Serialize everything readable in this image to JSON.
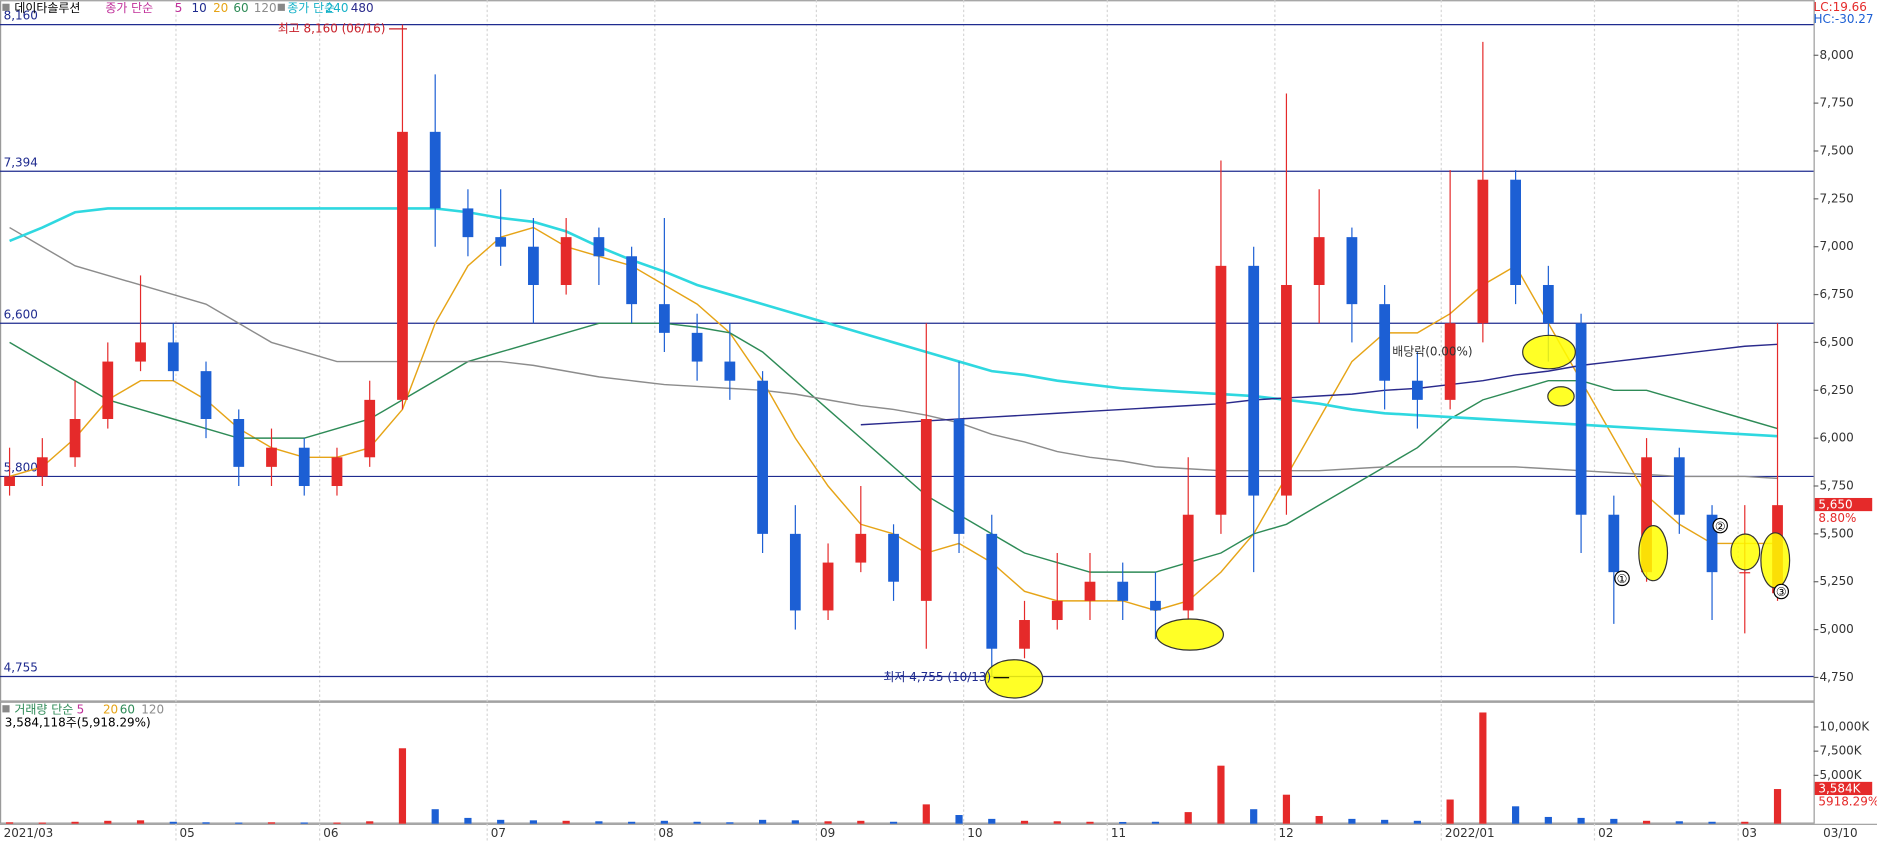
{
  "chart_data": [
    {
      "type": "candlestick",
      "title": "데이타솔루션",
      "legend_prefix": "종가 단순",
      "legend_extra": [
        {
          "name": "5",
          "color": "#c0309a"
        },
        {
          "name": "10",
          "color": "#1f2b8f"
        }
      ],
      "top_right": [
        "LC:19.66",
        "HC:-30.27"
      ],
      "ylim": [
        4630,
        8288
      ],
      "yticks": [
        {
          "value": 4750,
          "label": "4,750"
        },
        {
          "value": 5000,
          "label": "5,000"
        },
        {
          "value": 5250,
          "label": "5,250"
        },
        {
          "value": 5500,
          "label": "5,500"
        },
        {
          "value": 5750,
          "label": "5,750"
        },
        {
          "value": 6000,
          "label": "6,000"
        },
        {
          "value": 6250,
          "label": "6,250"
        },
        {
          "value": 6500,
          "label": "6,500"
        },
        {
          "value": 6750,
          "label": "6,750"
        },
        {
          "value": 7000,
          "label": "7,000"
        },
        {
          "value": 7250,
          "label": "7,250"
        },
        {
          "value": 7500,
          "label": "7,500"
        },
        {
          "value": 7750,
          "label": "7,750"
        },
        {
          "value": 8000,
          "label": "8,000"
        }
      ],
      "levels": [
        {
          "value": 8160,
          "label": "8,160"
        },
        {
          "value": 7394,
          "label": "7,394"
        },
        {
          "value": 6600,
          "label": "6,600"
        },
        {
          "value": 5800,
          "label": "5,800"
        },
        {
          "value": 4755,
          "label": "4,755"
        }
      ],
      "up_color": "#e52a2a",
      "down_color": "#1c5fd4",
      "candles": [
        [
          5750,
          5950,
          5700,
          5800
        ],
        [
          5800,
          6000,
          5750,
          5900
        ],
        [
          5900,
          6300,
          5850,
          6100
        ],
        [
          6100,
          6500,
          6050,
          6400
        ],
        [
          6400,
          6850,
          6350,
          6500
        ],
        [
          6500,
          6600,
          6300,
          6350
        ],
        [
          6350,
          6400,
          6000,
          6100
        ],
        [
          6100,
          6150,
          5750,
          5850
        ],
        [
          5850,
          6050,
          5750,
          5950
        ],
        [
          5950,
          6000,
          5700,
          5750
        ],
        [
          5750,
          5950,
          5700,
          5900
        ],
        [
          5900,
          6300,
          5850,
          6200
        ],
        [
          6200,
          8160,
          6150,
          7600
        ],
        [
          7600,
          7900,
          7000,
          7200
        ],
        [
          7200,
          7300,
          6950,
          7050
        ],
        [
          7050,
          7300,
          6900,
          7000
        ],
        [
          7000,
          7150,
          6600,
          6800
        ],
        [
          6800,
          7150,
          6750,
          7050
        ],
        [
          7050,
          7100,
          6800,
          6950
        ],
        [
          6950,
          7000,
          6600,
          6700
        ],
        [
          6700,
          7150,
          6450,
          6550
        ],
        [
          6550,
          6650,
          6300,
          6400
        ],
        [
          6400,
          6600,
          6200,
          6300
        ],
        [
          6300,
          6350,
          5400,
          5500
        ],
        [
          5500,
          5650,
          5000,
          5100
        ],
        [
          5100,
          5450,
          5050,
          5350
        ],
        [
          5350,
          5750,
          5300,
          5500
        ],
        [
          5500,
          5550,
          5150,
          5250
        ],
        [
          5150,
          6600,
          4900,
          6100
        ],
        [
          6100,
          6400,
          5400,
          5500
        ],
        [
          5500,
          5600,
          4755,
          4900
        ],
        [
          4900,
          5150,
          4850,
          5050
        ],
        [
          5050,
          5400,
          5000,
          5150
        ],
        [
          5150,
          5400,
          5050,
          5250
        ],
        [
          5250,
          5350,
          5050,
          5150
        ],
        [
          5150,
          5300,
          4950,
          5100
        ],
        [
          5100,
          5900,
          5050,
          5600
        ],
        [
          5600,
          7450,
          5500,
          6900
        ],
        [
          6900,
          7000,
          5300,
          5700
        ],
        [
          5700,
          7800,
          5600,
          6800
        ],
        [
          6800,
          7300,
          6600,
          7050
        ],
        [
          7050,
          7100,
          6500,
          6700
        ],
        [
          6700,
          6800,
          6150,
          6300
        ],
        [
          6300,
          6450,
          6050,
          6200
        ],
        [
          6200,
          7400,
          6150,
          6600
        ],
        [
          6600,
          8070,
          6500,
          7350
        ],
        [
          7350,
          7400,
          6700,
          6800
        ],
        [
          6800,
          6900,
          6400,
          6600
        ],
        [
          6600,
          6650,
          5400,
          5600
        ],
        [
          5600,
          5700,
          5030,
          5300
        ],
        [
          5300,
          6000,
          5250,
          5900
        ],
        [
          5900,
          5950,
          5500,
          5600
        ],
        [
          5600,
          5650,
          5050,
          5300
        ],
        [
          5300,
          5650,
          4980,
          5300
        ],
        [
          5190,
          6600,
          5150,
          5650
        ]
      ],
      "series": [
        {
          "name": "20",
          "color": "#e6a417",
          "values": [
            5800,
            5850,
            6000,
            6200,
            6300,
            6300,
            6200,
            6050,
            5950,
            5900,
            5900,
            5950,
            6150,
            6600,
            6900,
            7050,
            7100,
            7000,
            6950,
            6900,
            6800,
            6700,
            6550,
            6300,
            6000,
            5750,
            5550,
            5500,
            5400,
            5450,
            5350,
            5200,
            5150,
            5150,
            5150,
            5100,
            5150,
            5300,
            5500,
            5800,
            6100,
            6400,
            6550,
            6550,
            6650,
            6800,
            6900,
            6600,
            6300,
            6000,
            5700,
            5550,
            5450,
            5450,
            5450
          ]
        },
        {
          "name": "60",
          "color": "#2e8b57",
          "values": [
            6500,
            6400,
            6300,
            6200,
            6150,
            6100,
            6050,
            6000,
            6000,
            6000,
            6050,
            6100,
            6200,
            6300,
            6400,
            6450,
            6500,
            6550,
            6600,
            6600,
            6600,
            6580,
            6550,
            6450,
            6300,
            6150,
            6000,
            5850,
            5700,
            5600,
            5500,
            5400,
            5350,
            5300,
            5300,
            5300,
            5350,
            5400,
            5500,
            5550,
            5650,
            5750,
            5850,
            5950,
            6100,
            6200,
            6250,
            6300,
            6300,
            6250,
            6250,
            6200,
            6150,
            6100,
            6050
          ]
        },
        {
          "name": "120",
          "color": "#8c8c8c",
          "values": [
            7100,
            7000,
            6900,
            6850,
            6800,
            6750,
            6700,
            6600,
            6500,
            6450,
            6400,
            6400,
            6400,
            6400,
            6400,
            6400,
            6380,
            6350,
            6320,
            6300,
            6280,
            6270,
            6260,
            6250,
            6230,
            6200,
            6170,
            6150,
            6120,
            6080,
            6020,
            5980,
            5930,
            5900,
            5880,
            5850,
            5840,
            5830,
            5830,
            5830,
            5830,
            5840,
            5850,
            5850,
            5850,
            5850,
            5850,
            5840,
            5830,
            5820,
            5810,
            5800,
            5800,
            5800,
            5790
          ]
        },
        {
          "name": "240",
          "color": "#2fd8e0",
          "values": [
            7030,
            7100,
            7180,
            7200,
            7200,
            7200,
            7200,
            7200,
            7200,
            7200,
            7200,
            7200,
            7200,
            7200,
            7180,
            7150,
            7130,
            7080,
            7000,
            6930,
            6870,
            6800,
            6750,
            6700,
            6650,
            6600,
            6550,
            6500,
            6450,
            6400,
            6350,
            6330,
            6300,
            6280,
            6260,
            6250,
            6240,
            6230,
            6220,
            6200,
            6180,
            6150,
            6130,
            6120,
            6110,
            6100,
            6090,
            6080,
            6070,
            6060,
            6050,
            6040,
            6030,
            6020,
            6010
          ]
        },
        {
          "name": "480",
          "color": "#2a2a8c",
          "values": [
            null,
            null,
            null,
            null,
            null,
            null,
            null,
            null,
            null,
            null,
            null,
            null,
            null,
            null,
            null,
            null,
            null,
            null,
            null,
            null,
            null,
            null,
            null,
            null,
            null,
            null,
            6070,
            6080,
            6090,
            6100,
            6110,
            6120,
            6130,
            6140,
            6150,
            6160,
            6170,
            6180,
            6200,
            6210,
            6220,
            6230,
            6250,
            6260,
            6280,
            6300,
            6330,
            6350,
            6380,
            6400,
            6420,
            6440,
            6460,
            6480,
            6490
          ]
        }
      ],
      "annotations": [
        "최고 8,160 (06/16)",
        "최저 4,755 (10/13)",
        "배당락(0.00%)"
      ],
      "markers": [
        "①",
        "②",
        "③"
      ],
      "current": {
        "value": 5650,
        "label": "5,650",
        "change": "8.80%"
      }
    },
    {
      "type": "bar",
      "legend": [
        "거래량 단순",
        "5",
        "20",
        "60",
        "120"
      ],
      "summary": "3,584,118주(5,918.29%)",
      "ylim": [
        0,
        12500
      ],
      "yticks": [
        {
          "value": 5000,
          "label": "5,000K"
        },
        {
          "value": 7500,
          "label": "7,500K"
        },
        {
          "value": 10000,
          "label": "10,000K"
        }
      ],
      "values": [
        150,
        120,
        200,
        300,
        350,
        200,
        150,
        120,
        150,
        130,
        120,
        250,
        7800,
        1500,
        600,
        400,
        350,
        300,
        250,
        200,
        300,
        200,
        150,
        400,
        350,
        250,
        300,
        200,
        2000,
        900,
        500,
        300,
        250,
        200,
        180,
        200,
        1200,
        6000,
        1500,
        3000,
        800,
        500,
        400,
        300,
        2500,
        11500,
        1800,
        700,
        600,
        500,
        300,
        250,
        200,
        200,
        3584
      ],
      "current_label": "3,584K",
      "current_ratio": "5918.29%",
      "x_labels": [
        "2021/03",
        "05",
        "06",
        "07",
        "08",
        "09",
        "10",
        "11",
        "12",
        "2022/01",
        "02",
        "03"
      ],
      "last_date": "03/10"
    }
  ]
}
